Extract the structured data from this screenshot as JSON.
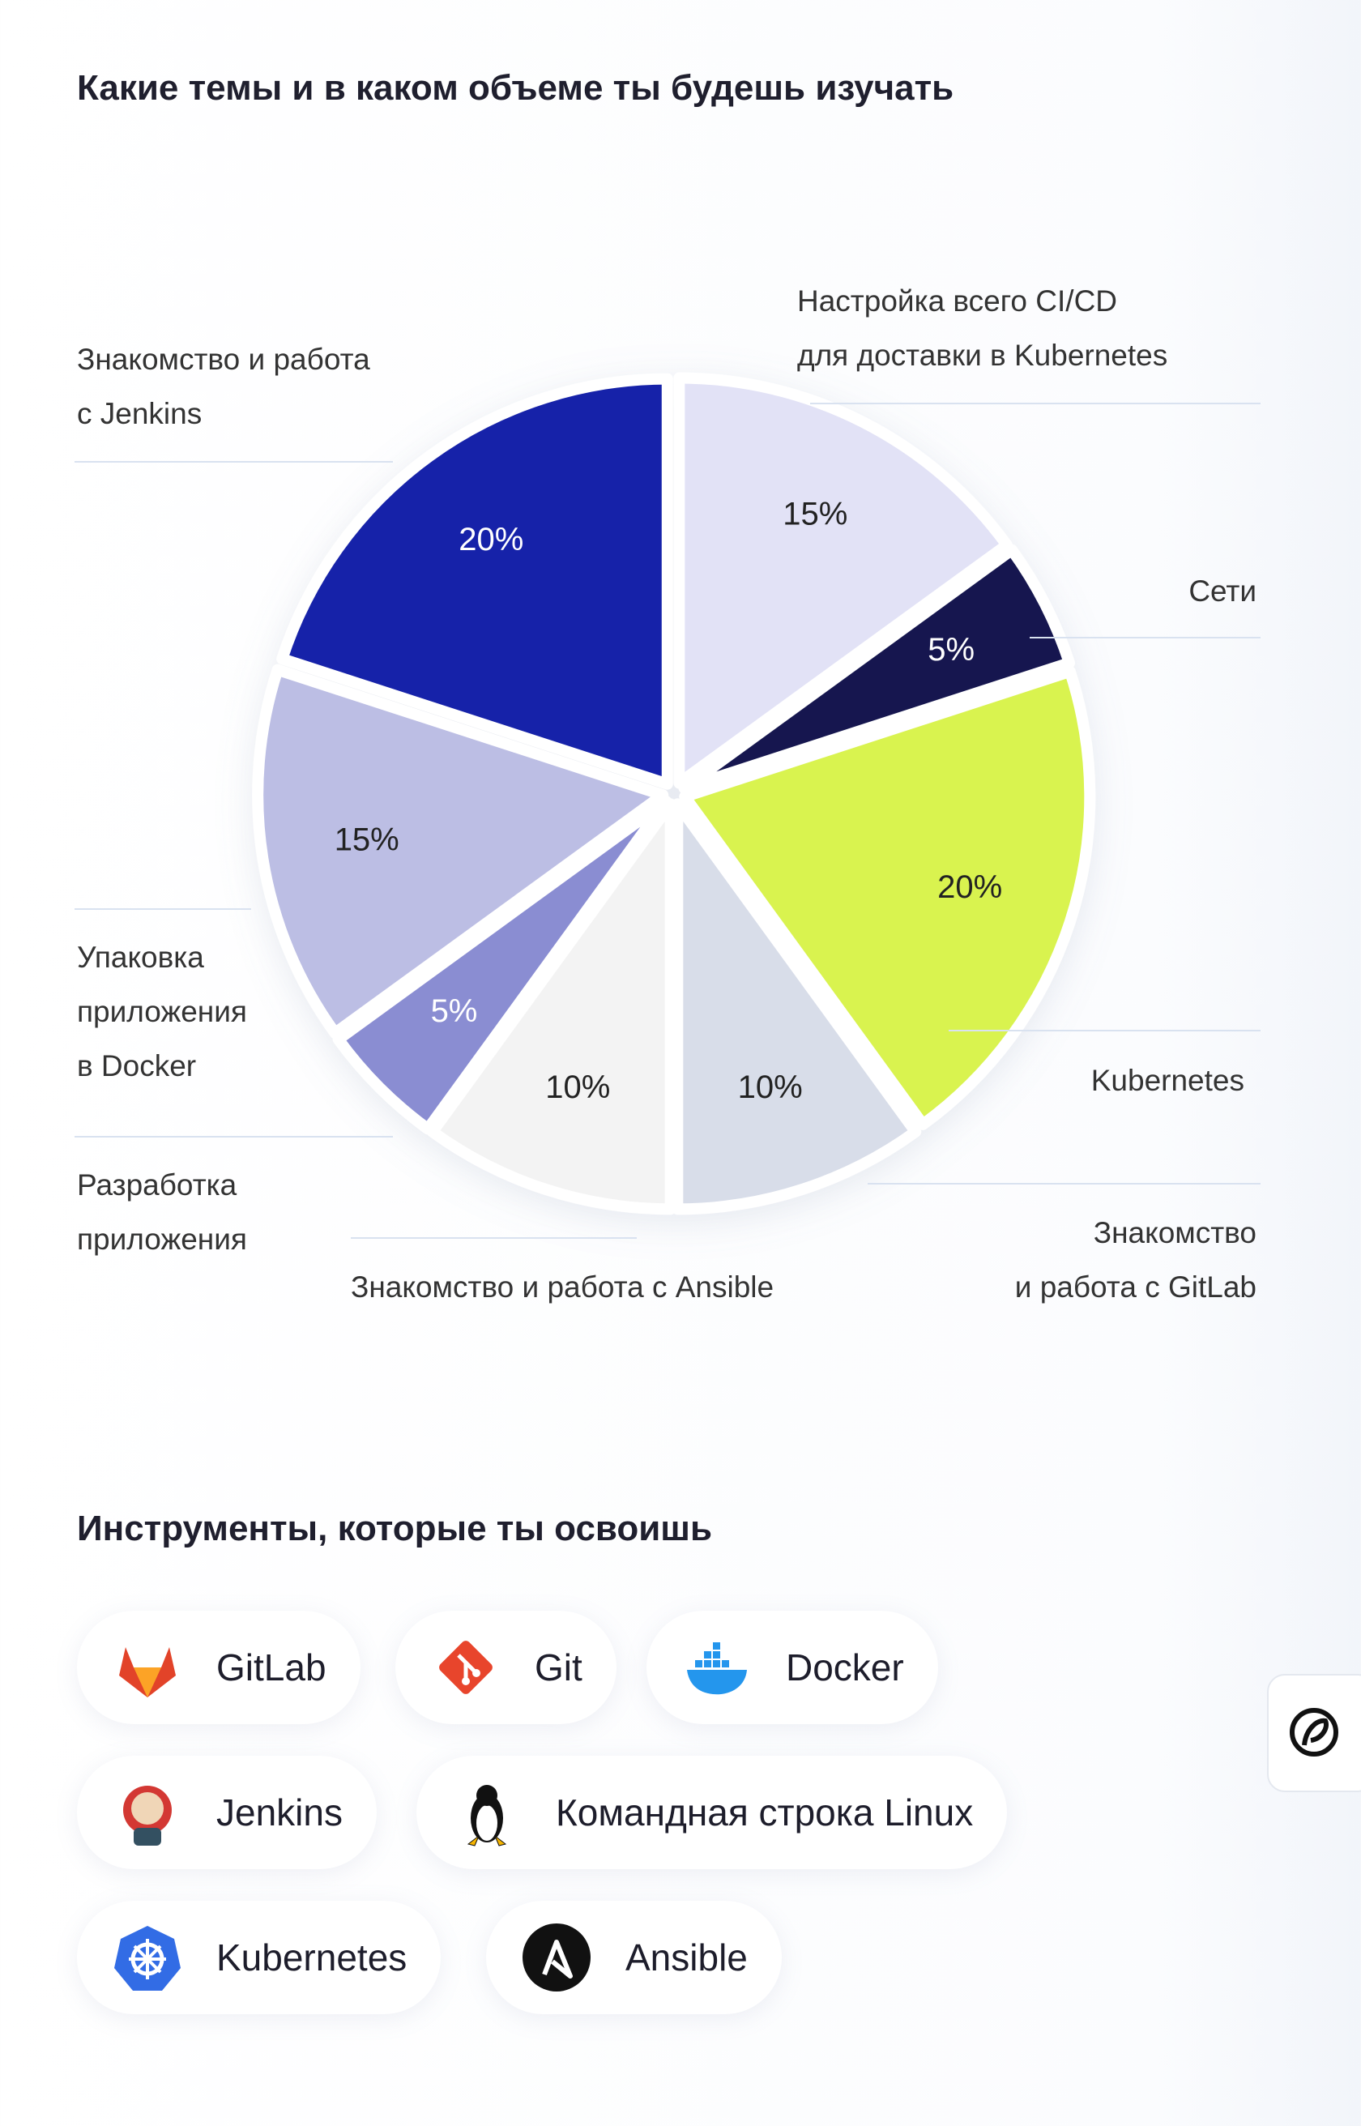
{
  "chart_data": {
    "type": "pie",
    "title": "Какие темы и в каком объеме ты будешь изучать",
    "categories": [
      "Настройка всего CI/CD\nдля доставки в Kubernetes",
      "Сети",
      "Kubernetes",
      "Знакомство\nи работа с GitLab",
      "Знакомство и работа с Ansible",
      "Разработка\nприложения",
      "Упаковка\nприложения\nв Docker",
      "Знакомство и работа\nс Jenkins"
    ],
    "values": [
      15,
      5,
      20,
      10,
      10,
      5,
      15,
      20
    ],
    "value_labels": [
      "15%",
      "5%",
      "20%",
      "10%",
      "10%",
      "5%",
      "15%",
      "20%"
    ],
    "colors": [
      "#e2e2f6",
      "#15194f",
      "#d9f34f",
      "#d8dde9",
      "#f3f3f3",
      "#8a8dd2",
      "#bcbee4",
      "#1924a9"
    ],
    "label_colors": [
      "#222",
      "#fff",
      "#222",
      "#222",
      "#222",
      "#fff",
      "#222",
      "#fff"
    ]
  },
  "tools": {
    "title": "Инструменты, которые ты освоишь",
    "items": [
      "GitLab",
      "Git",
      "Docker",
      "Jenkins",
      "Командная строка Linux",
      "Kubernetes",
      "Ansible"
    ]
  }
}
